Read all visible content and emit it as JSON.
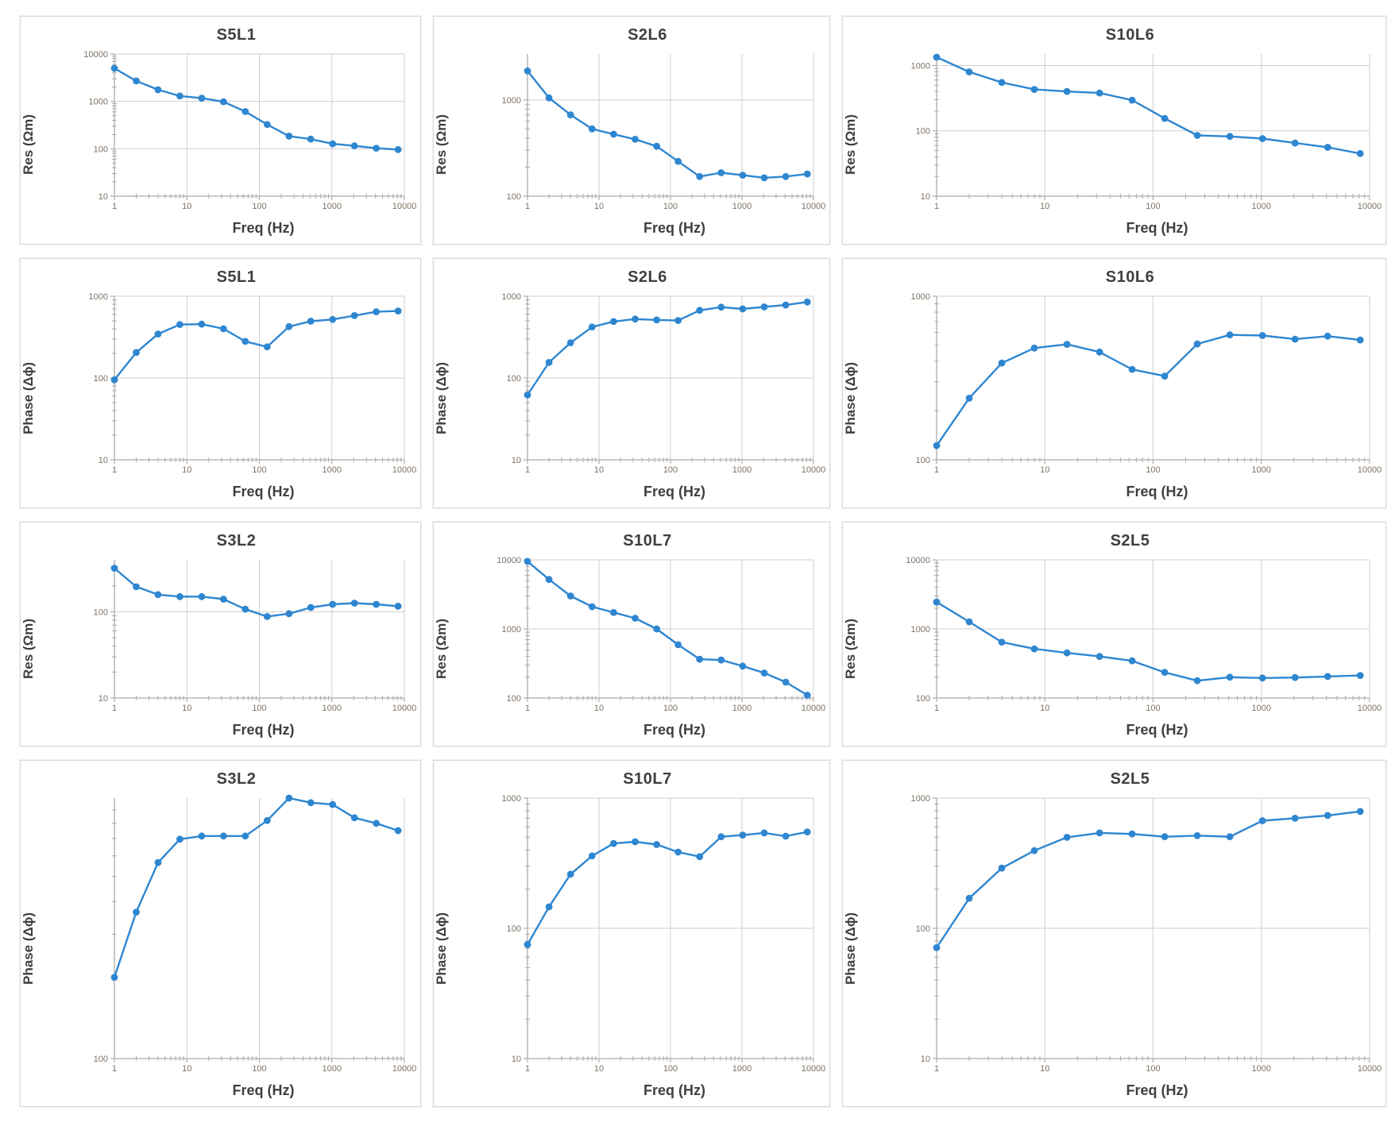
{
  "figure": {
    "description": "Grid of 12 spectral induced polarization log-log line charts"
  },
  "colors": {
    "line": "#2E86D0",
    "grid": "#CFCFCF",
    "axis": "#ABABAB",
    "minor_tick": "#ABABAB",
    "tick_label": "#7D7264",
    "title": "#3F3F3F",
    "card_border": "#D8D8D8",
    "card_bg": "#FFFFFF",
    "page_bg": "#FFFFFF"
  },
  "chart_data": [
    {
      "type": "line",
      "title": "S5L1",
      "xlabel": "Freq (Hz)",
      "ylabel": "Res (Ωm)",
      "legend": "none",
      "grid": true,
      "x": [
        1,
        2,
        4,
        8,
        16,
        32,
        64,
        128,
        256,
        512,
        1024,
        2048,
        4096,
        8192
      ],
      "y": [
        5000,
        2700,
        1760,
        1300,
        1170,
        985,
        610,
        325,
        185,
        160,
        127,
        115,
        103,
        96
      ],
      "xlim": [
        1,
        10000
      ],
      "ylim": [
        10,
        10000
      ],
      "xticks": [
        1,
        10,
        100,
        1000,
        10000
      ],
      "yticks": [
        10,
        100,
        1000,
        10000
      ]
    },
    {
      "type": "line",
      "title": "S2L6",
      "xlabel": "Freq (Hz)",
      "ylabel": "Res (Ωm)",
      "legend": "none",
      "grid": true,
      "x": [
        1,
        2,
        4,
        8,
        16,
        32,
        64,
        128,
        256,
        512,
        1024,
        2048,
        4096,
        8192
      ],
      "y": [
        2000,
        1050,
        700,
        500,
        440,
        390,
        330,
        230,
        160,
        175,
        165,
        155,
        160,
        170
      ],
      "xlim": [
        1,
        10000
      ],
      "ylim": [
        100,
        3000
      ],
      "xticks": [
        1,
        10,
        100,
        1000,
        10000
      ],
      "yticks": [
        100,
        1000
      ]
    },
    {
      "type": "line",
      "title": "S10L6",
      "xlabel": "Freq (Hz)",
      "ylabel": "Res (Ωm)",
      "legend": "none",
      "grid": true,
      "x": [
        1,
        2,
        4,
        8,
        16,
        32,
        64,
        128,
        256,
        512,
        1024,
        2048,
        4096,
        8192
      ],
      "y": [
        1340,
        800,
        550,
        430,
        400,
        380,
        295,
        155,
        85,
        82,
        76,
        65,
        56,
        45
      ],
      "xlim": [
        1,
        10000
      ],
      "ylim": [
        10,
        1500
      ],
      "xticks": [
        1,
        10,
        100,
        1000,
        10000
      ],
      "yticks": [
        10,
        100,
        1000
      ]
    },
    {
      "type": "line",
      "title": "S5L1",
      "xlabel": "Freq (Hz)",
      "ylabel": "Phase (Δϕ)",
      "legend": "none",
      "grid": true,
      "x": [
        1,
        2,
        4,
        8,
        16,
        32,
        64,
        128,
        256,
        512,
        1024,
        2048,
        4096,
        8192
      ],
      "y": [
        95,
        205,
        345,
        450,
        455,
        400,
        280,
        240,
        425,
        495,
        520,
        580,
        645,
        660
      ],
      "xlim": [
        1,
        10000
      ],
      "ylim": [
        10,
        1000
      ],
      "xticks": [
        1,
        10,
        100,
        1000,
        10000
      ],
      "yticks": [
        10,
        100,
        1000
      ]
    },
    {
      "type": "line",
      "title": "S2L6",
      "xlabel": "Freq (Hz)",
      "ylabel": "Phase (Δϕ)",
      "legend": "none",
      "grid": true,
      "x": [
        1,
        2,
        4,
        8,
        16,
        32,
        64,
        128,
        256,
        512,
        1024,
        2048,
        4096,
        8192
      ],
      "y": [
        62,
        155,
        270,
        420,
        490,
        525,
        512,
        505,
        672,
        735,
        700,
        740,
        780,
        850
      ],
      "xlim": [
        1,
        10000
      ],
      "ylim": [
        10,
        1000
      ],
      "xticks": [
        1,
        10,
        100,
        1000,
        10000
      ],
      "yticks": [
        10,
        100,
        1000
      ]
    },
    {
      "type": "line",
      "title": "S10L6",
      "xlabel": "Freq (Hz)",
      "ylabel": "Phase (Δϕ)",
      "legend": "none",
      "grid": true,
      "x": [
        1,
        2,
        4,
        8,
        16,
        32,
        64,
        128,
        256,
        512,
        1024,
        2048,
        4096,
        8192
      ],
      "y": [
        122,
        238,
        390,
        482,
        508,
        456,
        357,
        325,
        510,
        580,
        575,
        546,
        570,
        540
      ],
      "xlim": [
        1,
        10000
      ],
      "ylim": [
        100,
        1000
      ],
      "xticks": [
        1,
        10,
        100,
        1000,
        10000
      ],
      "yticks": [
        100,
        1000
      ]
    },
    {
      "type": "line",
      "title": "S3L2",
      "xlabel": "Freq (Hz)",
      "ylabel": "Res (Ωm)",
      "legend": "none",
      "grid": true,
      "x": [
        1,
        2,
        4,
        8,
        16,
        32,
        64,
        128,
        256,
        512,
        1024,
        2048,
        4096,
        8192
      ],
      "y": [
        320,
        195,
        158,
        150,
        150,
        140,
        107,
        88,
        95,
        112,
        122,
        126,
        122,
        116
      ],
      "xlim": [
        1,
        10000
      ],
      "ylim": [
        10,
        400
      ],
      "xticks": [
        1,
        10,
        100,
        1000,
        10000
      ],
      "yticks": [
        10,
        100
      ]
    },
    {
      "type": "line",
      "title": "S10L7",
      "xlabel": "Freq (Hz)",
      "ylabel": "Res (Ωm)",
      "legend": "none",
      "grid": true,
      "x": [
        1,
        2,
        4,
        8,
        16,
        32,
        64,
        128,
        256,
        512,
        1024,
        2048,
        4096,
        8192
      ],
      "y": [
        9500,
        5200,
        3000,
        2100,
        1730,
        1430,
        1000,
        590,
        365,
        355,
        290,
        230,
        170,
        110
      ],
      "xlim": [
        1,
        10000
      ],
      "ylim": [
        100,
        10000
      ],
      "xticks": [
        1,
        10,
        100,
        1000,
        10000
      ],
      "yticks": [
        100,
        1000,
        10000
      ]
    },
    {
      "type": "line",
      "title": "S2L5",
      "xlabel": "Freq (Hz)",
      "ylabel": "Res (Ωm)",
      "legend": "none",
      "grid": true,
      "x": [
        1,
        2,
        4,
        8,
        16,
        32,
        64,
        128,
        256,
        512,
        1024,
        2048,
        4096,
        8192
      ],
      "y": [
        2450,
        1270,
        645,
        515,
        450,
        400,
        345,
        235,
        178,
        200,
        195,
        198,
        205,
        212
      ],
      "xlim": [
        1,
        10000
      ],
      "ylim": [
        100,
        10000
      ],
      "xticks": [
        1,
        10,
        100,
        1000,
        10000
      ],
      "yticks": [
        100,
        1000,
        10000
      ]
    },
    {
      "type": "line",
      "title": "S3L2",
      "xlabel": "Freq (Hz)",
      "ylabel": "Phase (Δϕ)",
      "legend": "none",
      "grid": true,
      "x": [
        1,
        2,
        4,
        8,
        16,
        32,
        64,
        128,
        256,
        512,
        1024,
        2048,
        4096,
        8192
      ],
      "y": [
        205,
        365,
        565,
        695,
        715,
        715,
        715,
        820,
        1000,
        960,
        945,
        840,
        800,
        750
      ],
      "xlim": [
        1,
        10000
      ],
      "ylim": [
        100,
        1000
      ],
      "xticks": [
        1,
        10,
        100,
        1000,
        10000
      ],
      "yticks": [
        100
      ]
    },
    {
      "type": "line",
      "title": "S10L7",
      "xlabel": "Freq (Hz)",
      "ylabel": "Phase (Δϕ)",
      "legend": "none",
      "grid": true,
      "x": [
        1,
        2,
        4,
        8,
        16,
        32,
        64,
        128,
        256,
        512,
        1024,
        2048,
        4096,
        8192
      ],
      "y": [
        75,
        146,
        260,
        360,
        448,
        462,
        440,
        385,
        355,
        505,
        520,
        540,
        510,
        550
      ],
      "xlim": [
        1,
        10000
      ],
      "ylim": [
        10,
        1000
      ],
      "xticks": [
        1,
        10,
        100,
        1000,
        10000
      ],
      "yticks": [
        10,
        100,
        1000
      ]
    },
    {
      "type": "line",
      "title": "S2L5",
      "xlabel": "Freq (Hz)",
      "ylabel": "Phase (Δϕ)",
      "legend": "none",
      "grid": true,
      "x": [
        1,
        2,
        4,
        8,
        16,
        32,
        64,
        128,
        256,
        512,
        1024,
        2048,
        4096,
        8192
      ],
      "y": [
        71,
        170,
        290,
        395,
        500,
        540,
        530,
        505,
        515,
        505,
        670,
        700,
        735,
        790
      ],
      "xlim": [
        1,
        10000
      ],
      "ylim": [
        10,
        1000
      ],
      "xticks": [
        1,
        10,
        100,
        1000,
        10000
      ],
      "yticks": [
        10,
        100,
        1000
      ]
    }
  ]
}
